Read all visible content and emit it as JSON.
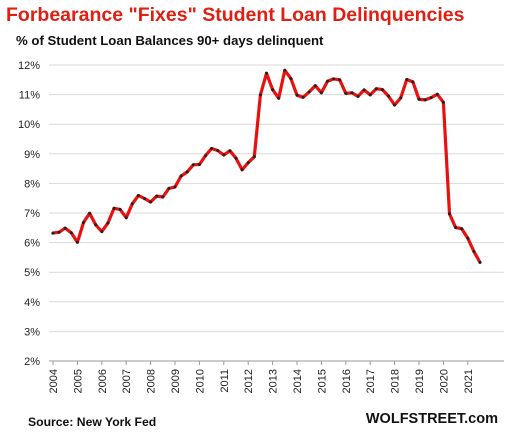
{
  "chart_data": {
    "type": "line",
    "title": "Forbearance \"Fixes\" Student Loan Delinquencies",
    "subtitle": "% of Student Loan Balances 90+ days delinquent",
    "source": "Source: New York Fed",
    "brand": "WOLFSTREET.com",
    "ylim": [
      2,
      12
    ],
    "y_ticks": [
      "2%",
      "3%",
      "4%",
      "5%",
      "6%",
      "7%",
      "8%",
      "9%",
      "10%",
      "11%",
      "12%"
    ],
    "x_ticks": [
      "2004",
      "2005",
      "2006",
      "2007",
      "2008",
      "2009",
      "2010",
      "2011",
      "2012",
      "2013",
      "2014",
      "2015",
      "2016",
      "2017",
      "2018",
      "2019",
      "2020",
      "2021"
    ],
    "grid": true,
    "line_color": "#e8110f",
    "marker_color": "#222222",
    "series": [
      {
        "x": [
          "2004-Q1",
          "2004-Q2",
          "2004-Q3",
          "2004-Q4",
          "2005-Q1",
          "2005-Q2",
          "2005-Q3",
          "2005-Q4",
          "2006-Q1",
          "2006-Q2",
          "2006-Q3",
          "2006-Q4",
          "2007-Q1",
          "2007-Q2",
          "2007-Q3",
          "2007-Q4",
          "2008-Q1",
          "2008-Q2",
          "2008-Q3",
          "2008-Q4",
          "2009-Q1",
          "2009-Q2",
          "2009-Q3",
          "2009-Q4",
          "2010-Q1",
          "2010-Q2",
          "2010-Q3",
          "2010-Q4",
          "2011-Q1",
          "2011-Q2",
          "2011-Q3",
          "2011-Q4",
          "2012-Q1",
          "2012-Q2",
          "2012-Q3",
          "2012-Q4",
          "2013-Q1",
          "2013-Q2",
          "2013-Q3",
          "2013-Q4",
          "2014-Q1",
          "2014-Q2",
          "2014-Q3",
          "2014-Q4",
          "2015-Q1",
          "2015-Q2",
          "2015-Q3",
          "2015-Q4",
          "2016-Q1",
          "2016-Q2",
          "2016-Q3",
          "2016-Q4",
          "2017-Q1",
          "2017-Q2",
          "2017-Q3",
          "2017-Q4",
          "2018-Q1",
          "2018-Q2",
          "2018-Q3",
          "2018-Q4",
          "2019-Q1",
          "2019-Q2",
          "2019-Q3",
          "2019-Q4",
          "2020-Q1",
          "2020-Q2",
          "2020-Q3",
          "2020-Q4",
          "2021-Q1",
          "2021-Q2",
          "2021-Q3"
        ],
        "values": [
          6.32,
          6.35,
          6.49,
          6.33,
          6.01,
          6.68,
          6.99,
          6.6,
          6.37,
          6.66,
          7.16,
          7.12,
          6.84,
          7.31,
          7.59,
          7.49,
          7.37,
          7.57,
          7.54,
          7.83,
          7.88,
          8.25,
          8.39,
          8.63,
          8.64,
          8.94,
          9.18,
          9.11,
          8.96,
          9.1,
          8.85,
          8.46,
          8.7,
          8.9,
          10.99,
          11.72,
          11.17,
          10.88,
          11.82,
          11.54,
          10.98,
          10.91,
          11.09,
          11.3,
          11.06,
          11.45,
          11.53,
          11.5,
          11.04,
          11.06,
          10.94,
          11.16,
          10.99,
          11.2,
          11.17,
          10.95,
          10.65,
          10.89,
          11.51,
          11.43,
          10.84,
          10.82,
          10.9,
          11.01,
          10.74,
          6.97,
          6.51,
          6.47,
          6.15,
          5.7,
          5.33
        ]
      }
    ]
  }
}
